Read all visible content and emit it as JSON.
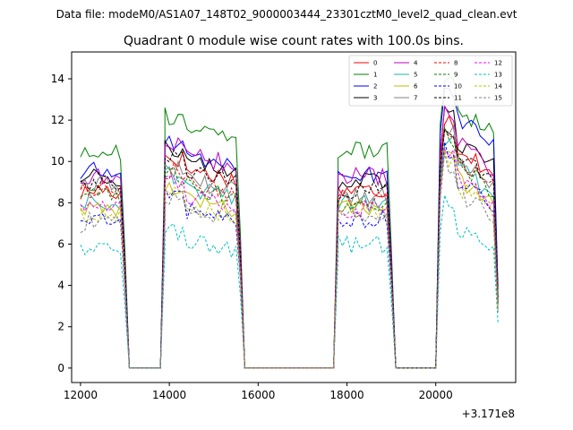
{
  "suptitle": "Data file: modeM0/AS1A07_148T02_9000003444_23301cztM0_level2_quad_clean.evt",
  "chart_data": {
    "type": "line",
    "title": "Quadrant 0 module wise count rates with 100.0s bins.",
    "xlabel": "",
    "ylabel": "",
    "x_offset_label": "+3.171e8",
    "xlim": [
      11800,
      21800
    ],
    "ylim": [
      -0.7,
      15.3
    ],
    "x_ticks": [
      12000,
      14000,
      16000,
      18000,
      20000
    ],
    "y_ticks": [
      0,
      2,
      4,
      6,
      8,
      10,
      12,
      14
    ],
    "legend_position": "upper right",
    "segments": [
      {
        "x_start": 12000,
        "x_end": 12800,
        "rise_to": 13000
      },
      {
        "x_start": 13900,
        "x_end": 15500,
        "rise_from": 13800,
        "rise_to": 15600
      },
      {
        "x_start": 17800,
        "x_end": 18900,
        "rise_from": 17700,
        "rise_to": 19100
      },
      {
        "x_start": 20200,
        "x_end": 21300,
        "rise_from": 20100,
        "rise_to": 21400
      }
    ],
    "gaps": [
      [
        13100,
        13800
      ],
      [
        15600,
        17700
      ],
      [
        19100,
        20000
      ]
    ],
    "series": [
      {
        "name": "0",
        "color": "#ff0000",
        "dash": "solid",
        "levels": [
          8.4,
          9.9,
          8.6,
          11.2
        ]
      },
      {
        "name": "1",
        "color": "#008000",
        "dash": "solid",
        "levels": [
          10.4,
          11.8,
          10.5,
          13.1
        ]
      },
      {
        "name": "2",
        "color": "#0000ff",
        "dash": "solid",
        "levels": [
          9.3,
          10.6,
          9.4,
          12.6
        ]
      },
      {
        "name": "3",
        "color": "#000000",
        "dash": "solid",
        "levels": [
          9.1,
          10.3,
          9.0,
          11.5
        ]
      },
      {
        "name": "4",
        "color": "#bf00bf",
        "dash": "solid",
        "levels": [
          9.0,
          10.6,
          9.3,
          11.4
        ]
      },
      {
        "name": "5",
        "color": "#20b2aa",
        "dash": "solid",
        "levels": [
          7.9,
          9.0,
          8.0,
          10.2
        ]
      },
      {
        "name": "6",
        "color": "#bfbf00",
        "dash": "solid",
        "levels": [
          7.7,
          8.5,
          7.8,
          9.7
        ]
      },
      {
        "name": "7",
        "color": "#808080",
        "dash": "solid",
        "levels": [
          8.6,
          9.4,
          8.3,
          10.6
        ]
      },
      {
        "name": "8",
        "color": "#ff0000",
        "dash": "dashed",
        "levels": [
          8.5,
          9.2,
          8.2,
          10.5
        ]
      },
      {
        "name": "9",
        "color": "#008000",
        "dash": "dashed",
        "levels": [
          8.1,
          9.0,
          8.0,
          10.4
        ]
      },
      {
        "name": "10",
        "color": "#0000ff",
        "dash": "dashed",
        "levels": [
          6.9,
          7.9,
          7.2,
          9.5
        ]
      },
      {
        "name": "11",
        "color": "#000000",
        "dash": "dashed",
        "levels": [
          8.8,
          9.9,
          8.6,
          10.8
        ]
      },
      {
        "name": "12",
        "color": "#ff00ff",
        "dash": "dashed",
        "levels": [
          7.6,
          8.6,
          7.7,
          9.7
        ]
      },
      {
        "name": "13",
        "color": "#00bfbf",
        "dash": "dashed",
        "levels": [
          5.6,
          6.4,
          6.0,
          7.3
        ]
      },
      {
        "name": "14",
        "color": "#bfbf00",
        "dash": "dashed",
        "levels": [
          7.3,
          8.2,
          7.6,
          9.3
        ]
      },
      {
        "name": "15",
        "color": "#808080",
        "dash": "dashed",
        "levels": [
          7.0,
          8.0,
          7.3,
          9.0
        ]
      }
    ]
  }
}
